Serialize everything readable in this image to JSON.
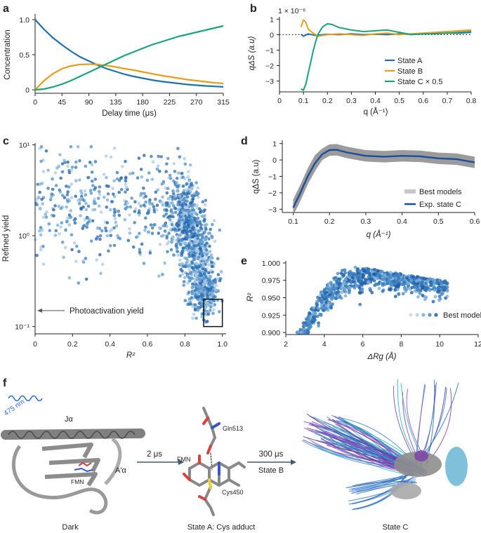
{
  "panels": {
    "a": {
      "label": "a"
    },
    "b": {
      "label": "b"
    },
    "c": {
      "label": "c"
    },
    "d": {
      "label": "d"
    },
    "e": {
      "label": "e"
    },
    "f": {
      "label": "f"
    }
  },
  "colors": {
    "blue": "#1f6fb2",
    "orange": "#e69f1c",
    "green": "#1aa37a",
    "grey": "#8a8a8a",
    "dark_blue": "#1a4f9c"
  },
  "chart_data": [
    {
      "id": "a",
      "type": "line",
      "xlabel": "Delay time (μs)",
      "ylabel": "Concentration",
      "xlim": [
        0,
        315
      ],
      "ylim": [
        -0.05,
        1.08
      ],
      "xticks": [
        0,
        45,
        90,
        135,
        180,
        225,
        270,
        315
      ],
      "yticks": [
        0,
        0.5,
        1.0
      ],
      "ytick_labels": [
        "0",
        "0.5",
        "1.0"
      ],
      "series": [
        {
          "name": "State A",
          "color": "#1f6fb2",
          "x": [
            0,
            15,
            30,
            45,
            60,
            75,
            90,
            105,
            120,
            135,
            150,
            165,
            180,
            195,
            210,
            225,
            240,
            255,
            270,
            285,
            300,
            315
          ],
          "y": [
            1.0,
            0.86,
            0.74,
            0.64,
            0.55,
            0.47,
            0.41,
            0.35,
            0.3,
            0.26,
            0.22,
            0.19,
            0.165,
            0.14,
            0.12,
            0.105,
            0.09,
            0.075,
            0.065,
            0.055,
            0.048,
            0.041
          ]
        },
        {
          "name": "State B",
          "color": "#e69f1c",
          "x": [
            0,
            15,
            30,
            45,
            60,
            75,
            90,
            105,
            120,
            135,
            150,
            165,
            180,
            195,
            210,
            225,
            240,
            255,
            270,
            285,
            300,
            315
          ],
          "y": [
            0.0,
            0.13,
            0.23,
            0.3,
            0.34,
            0.36,
            0.365,
            0.36,
            0.345,
            0.325,
            0.3,
            0.28,
            0.255,
            0.23,
            0.205,
            0.185,
            0.165,
            0.145,
            0.13,
            0.115,
            0.1,
            0.09
          ]
        },
        {
          "name": "State C",
          "color": "#1aa37a",
          "x": [
            0,
            15,
            30,
            45,
            60,
            75,
            90,
            105,
            120,
            135,
            150,
            165,
            180,
            195,
            210,
            225,
            240,
            255,
            270,
            285,
            300,
            315
          ],
          "y": [
            0.0,
            0.01,
            0.04,
            0.08,
            0.13,
            0.19,
            0.25,
            0.31,
            0.37,
            0.43,
            0.49,
            0.54,
            0.59,
            0.64,
            0.68,
            0.72,
            0.76,
            0.79,
            0.82,
            0.85,
            0.88,
            0.91
          ]
        }
      ]
    },
    {
      "id": "b",
      "type": "line",
      "xlabel": "q (Å⁻¹)",
      "ylabel": "qΔS (a.u)",
      "multiplier": "1 × 10⁻⁶",
      "xlim": [
        0,
        0.8
      ],
      "ylim": [
        -3.7,
        1.15
      ],
      "xticks": [
        0,
        0.1,
        0.2,
        0.3,
        0.4,
        0.5,
        0.6,
        0.7,
        0.8
      ],
      "xtick_labels": [
        "0",
        "0.1",
        "0.2",
        "0.3",
        "0.4",
        "0.5",
        "0.6",
        "0.7",
        "0.8"
      ],
      "yticks": [
        -3,
        -2,
        -1,
        0,
        1
      ],
      "zero_line": "dotted",
      "legend": [
        "State A",
        "State B",
        "State C × 0.5"
      ],
      "legend_position": "bottom-right",
      "series": [
        {
          "name": "State A",
          "color": "#1f6fb2",
          "x": [
            0.09,
            0.1,
            0.12,
            0.15,
            0.2,
            0.25,
            0.3,
            0.35,
            0.4,
            0.45,
            0.5,
            0.55,
            0.6,
            0.65,
            0.7,
            0.75,
            0.8
          ],
          "y": [
            0.02,
            -0.1,
            0.05,
            -0.05,
            0.02,
            0.0,
            0.05,
            0.0,
            0.03,
            0.0,
            0.05,
            0.02,
            0.05,
            0.08,
            0.1,
            0.1,
            0.15
          ]
        },
        {
          "name": "State B",
          "color": "#e69f1c",
          "x": [
            0.09,
            0.1,
            0.11,
            0.12,
            0.14,
            0.16,
            0.18,
            0.2,
            0.25,
            0.3,
            0.35,
            0.4,
            0.45,
            0.5,
            0.55,
            0.6,
            0.65,
            0.7,
            0.75,
            0.8
          ],
          "y": [
            0.5,
            0.95,
            0.8,
            0.35,
            0.1,
            -0.1,
            -0.05,
            0.0,
            0.05,
            0.0,
            -0.05,
            0.05,
            0.1,
            0.0,
            0.05,
            0.1,
            0.15,
            0.2,
            0.25,
            0.3
          ]
        },
        {
          "name": "State C × 0.5",
          "color": "#1aa37a",
          "x": [
            0.09,
            0.1,
            0.11,
            0.12,
            0.13,
            0.14,
            0.15,
            0.16,
            0.18,
            0.2,
            0.22,
            0.25,
            0.3,
            0.35,
            0.4,
            0.45,
            0.5,
            0.55,
            0.6,
            0.65,
            0.7,
            0.75,
            0.8
          ],
          "y": [
            -3.5,
            -3.6,
            -3.2,
            -2.5,
            -1.8,
            -1.1,
            -0.5,
            0.0,
            0.5,
            0.7,
            0.65,
            0.45,
            0.3,
            0.2,
            0.25,
            0.3,
            0.15,
            0.0,
            0.05,
            0.05,
            0.1,
            0.15,
            0.2
          ]
        }
      ]
    },
    {
      "id": "c",
      "type": "scatter",
      "xlabel": "R²",
      "ylabel": "Refined yield",
      "xlim": [
        0,
        1.02
      ],
      "ylim_log10": [
        -1.08,
        1.02
      ],
      "xticks": [
        0,
        0.2,
        0.4,
        0.6,
        0.8,
        1.0
      ],
      "xtick_labels": [
        "0",
        "0.2",
        "0.4",
        "0.6",
        "0.8",
        "1.0"
      ],
      "yticks": [
        0.1,
        1,
        10
      ],
      "ytick_labels": [
        "10⁻¹",
        "10⁰",
        "10¹"
      ],
      "yscale": "log",
      "annotation": "Photoactivation yield",
      "highlight_box": {
        "x": [
          0.9,
          1.0
        ],
        "y": [
          0.1,
          0.2
        ]
      },
      "description": "Thousands of points; dense cluster around R² 0.75–0.95, yield 0.3–3"
    },
    {
      "id": "d",
      "type": "line",
      "xlabel": "q (Å⁻¹)",
      "ylabel": "qΔS (a.u)",
      "xlim": [
        0.07,
        0.6
      ],
      "ylim": [
        -3.2,
        1.2
      ],
      "xticks": [
        0.1,
        0.2,
        0.3,
        0.4,
        0.5,
        0.6
      ],
      "yticks": [
        -3,
        -2,
        -1,
        0,
        1
      ],
      "legend": [
        "Best models",
        "Exp. state C"
      ],
      "legend_position": "bottom-right",
      "series": [
        {
          "name": "Exp. state C",
          "color": "#1a4f9c",
          "x": [
            0.1,
            0.12,
            0.14,
            0.16,
            0.18,
            0.2,
            0.22,
            0.25,
            0.3,
            0.35,
            0.4,
            0.45,
            0.5,
            0.55,
            0.6
          ],
          "y": [
            -2.9,
            -2.0,
            -1.0,
            -0.2,
            0.35,
            0.6,
            0.62,
            0.45,
            0.25,
            0.2,
            0.25,
            0.22,
            0.1,
            0.05,
            -0.15
          ]
        },
        {
          "name": "Best models",
          "color": "#8a8a8a",
          "band_halfwidth": 0.35
        }
      ]
    },
    {
      "id": "e",
      "type": "scatter",
      "xlabel": "ΔRg (Å)",
      "ylabel": "R²",
      "xlim": [
        2,
        12
      ],
      "ylim": [
        0.897,
        1.003
      ],
      "xticks": [
        2,
        4,
        6,
        8,
        10,
        12
      ],
      "yticks": [
        0.9,
        0.925,
        0.95,
        0.975,
        1.0
      ],
      "ytick_labels": [
        "0.900",
        "0.925",
        "0.950",
        "0.975",
        "1.000"
      ],
      "legend": [
        "Best models"
      ],
      "legend_position": "bottom-right",
      "description": "Cloud of points rising from R² 0.90 at ΔRg 3 to 0.995 near ΔRg 5.5, then slowly decreasing to 0.97 at ΔRg 10"
    }
  ],
  "panel_f": {
    "light": "475 nm",
    "helix_label": "Jα",
    "aprime_label": "A′α",
    "fmn_label": "FMN",
    "gln_label": "Gln513",
    "cys_label": "Cys450",
    "step1": "2 μs",
    "step2": "300 μs",
    "state_b": "State B",
    "captions": [
      "Dark",
      "State A: Cys adduct",
      "State C"
    ]
  }
}
